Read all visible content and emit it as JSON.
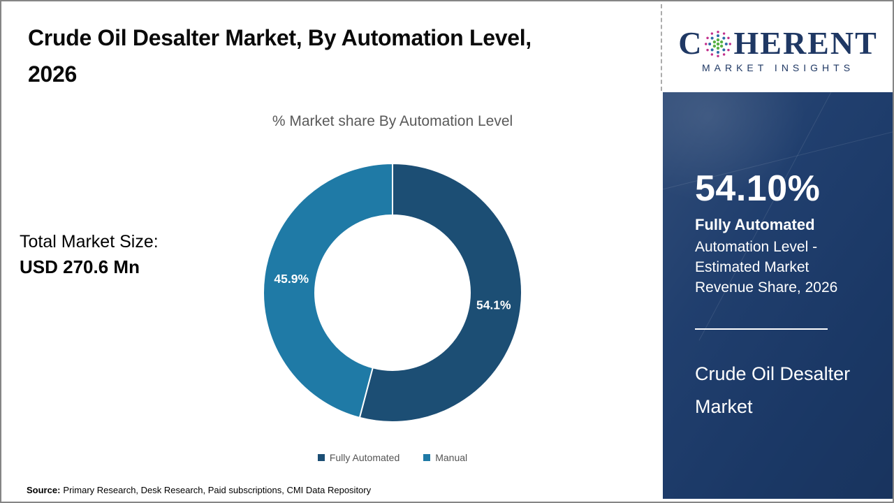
{
  "header": {
    "title_line1": "Crude Oil Desalter Market, By Automation Level,",
    "title_line2": "2026"
  },
  "chart_data": {
    "type": "pie",
    "subtype": "donut",
    "title": "% Market share By Automation Level",
    "categories": [
      "Fully Automated",
      "Manual"
    ],
    "values": [
      54.1,
      45.9
    ],
    "slice_labels": [
      "54.1%",
      "45.9%"
    ],
    "colors": [
      "#1C4E74",
      "#1F7AA6"
    ],
    "donut_hole_ratio": 0.6,
    "start_angle_deg": 0,
    "direction": "clockwise",
    "legend_position": "bottom",
    "slice_label_color": "#FFFFFF"
  },
  "total_market": {
    "label": "Total Market Size:",
    "value": "USD 270.6 Mn"
  },
  "sidebar": {
    "stat_value": "54.10%",
    "stat_label": "Fully Automated",
    "stat_desc": "Automation Level - Estimated Market Revenue Share, 2026",
    "market_name": "Crude Oil Desalter Market",
    "background_color": "#1C3B6B"
  },
  "logo": {
    "text_c": "C",
    "text_rest": "HERENT",
    "subtext": "MARKET INSIGHTS",
    "color": "#1F3864"
  },
  "source": {
    "label": "Source:",
    "text": "Primary Research, Desk Research, Paid subscriptions, CMI Data Repository"
  }
}
